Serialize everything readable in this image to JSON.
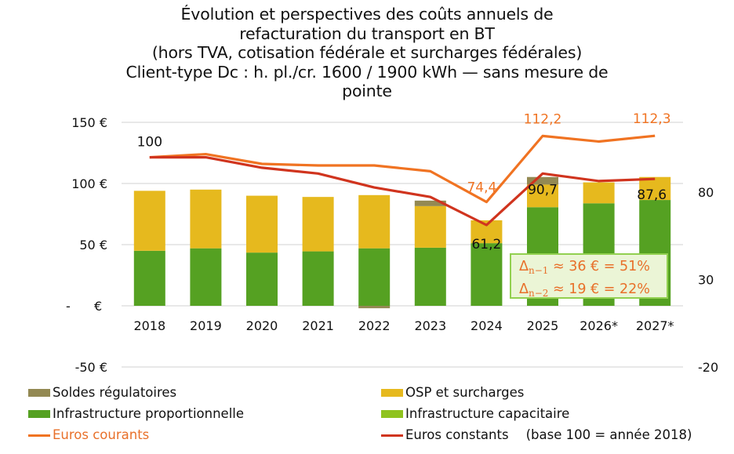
{
  "chart_data": {
    "type": "bar",
    "title_lines": [
      "Évolution et perspectives des coûts annuels de",
      "refacturation du transport en BT",
      "(hors TVA, cotisation fédérale et surcharges fédérales)",
      "Client-type Dc : h. pl./cr. 1600 / 1900 kWh — sans mesure de",
      "pointe"
    ],
    "categories": [
      "2018",
      "2019",
      "2020",
      "2021",
      "2022",
      "2023",
      "2024",
      "2025",
      "2026*",
      "2027*"
    ],
    "stacked": true,
    "y_left": {
      "min": -50,
      "max": 150,
      "ticks": [
        150,
        100,
        50,
        0,
        -50
      ],
      "tick_labels": [
        "150 €",
        "100 €",
        "50 €",
        "-   €",
        "-50 €"
      ]
    },
    "y_right": {
      "min": -20,
      "max": 120,
      "ticks": [
        80,
        30,
        -20
      ],
      "tick_labels": [
        "80",
        "30",
        "-20"
      ]
    },
    "grid": true,
    "series": [
      {
        "name": "Infrastructure proportionnelle",
        "type": "bar",
        "axis": "left",
        "color": "#55a122",
        "values": [
          45,
          47,
          43.5,
          44.5,
          47,
          47.5,
          51.2,
          80.6,
          83.8,
          86.5
        ]
      },
      {
        "name": "Infrastructure capacitaire",
        "type": "bar",
        "axis": "left",
        "color": "#8fc31f",
        "values": [
          0,
          0,
          0,
          0,
          0,
          0,
          0,
          0,
          0,
          0
        ]
      },
      {
        "name": "OSP et surcharges",
        "type": "bar",
        "axis": "left",
        "color": "#e6b91e",
        "values": [
          49,
          48,
          46.5,
          44.5,
          43.5,
          34,
          18.7,
          18.5,
          17.1,
          18.8
        ]
      },
      {
        "name": "Soldes régulatoires",
        "type": "bar",
        "axis": "left",
        "color": "#938953",
        "values": [
          0,
          0,
          0,
          0,
          -2,
          4.5,
          0,
          6.2,
          0,
          0
        ]
      },
      {
        "name": "Euros courants",
        "type": "line",
        "axis": "right",
        "color": "#f07322",
        "values": [
          100,
          101.8,
          96.2,
          95.3,
          95.3,
          92,
          74.4,
          112.2,
          109,
          112.3
        ]
      },
      {
        "name": "Euros constants",
        "type": "line",
        "axis": "right",
        "color": "#d0341e",
        "values": [
          100,
          100,
          94,
          90.7,
          82.7,
          77.3,
          61.2,
          90.7,
          86.4,
          87.6
        ]
      }
    ],
    "data_labels": [
      {
        "series": "Euros courants",
        "category": "2018",
        "text": "100",
        "color": "#111111"
      },
      {
        "series": "Euros courants",
        "category": "2024",
        "text": "74,4",
        "color": "#f07322"
      },
      {
        "series": "Euros courants",
        "category": "2025",
        "text": "112,2",
        "color": "#f07322"
      },
      {
        "series": "Euros courants",
        "category": "2027*",
        "text": "112,3",
        "color": "#f07322"
      },
      {
        "series": "Euros constants",
        "category": "2024",
        "text": "61,2",
        "color": "#111111"
      },
      {
        "series": "Euros constants",
        "category": "2025",
        "text": "90,7",
        "color": "#111111"
      },
      {
        "series": "Euros constants",
        "category": "2027*",
        "text": "87,6",
        "color": "#111111"
      }
    ],
    "annotation": {
      "lines": [
        {
          "delta": "Δ",
          "sub": "n−1",
          "text": " ≈ 36 € = 51%"
        },
        {
          "delta": "Δ",
          "sub": "n−2",
          "text": " ≈ 19 € = 22%"
        }
      ],
      "color": "#e8702a"
    },
    "legend": {
      "placement": "bottom",
      "items": [
        {
          "label": "Soldes régulatoires",
          "kind": "box",
          "color": "#938953",
          "text_color": "#111111"
        },
        {
          "label": "OSP et surcharges",
          "kind": "box",
          "color": "#e6b91e",
          "text_color": "#111111"
        },
        {
          "label": "Infrastructure proportionnelle",
          "kind": "box",
          "color": "#55a122",
          "text_color": "#111111"
        },
        {
          "label": "Infrastructure capacitaire",
          "kind": "box",
          "color": "#8fc31f",
          "text_color": "#111111"
        },
        {
          "label": "Euros courants",
          "kind": "line",
          "color": "#f07322",
          "text_color": "#e8702a"
        },
        {
          "label": "Euros constants",
          "kind": "line",
          "color": "#d0341e",
          "text_color": "#111111"
        }
      ],
      "note": "(base 100 = année 2018)"
    }
  }
}
